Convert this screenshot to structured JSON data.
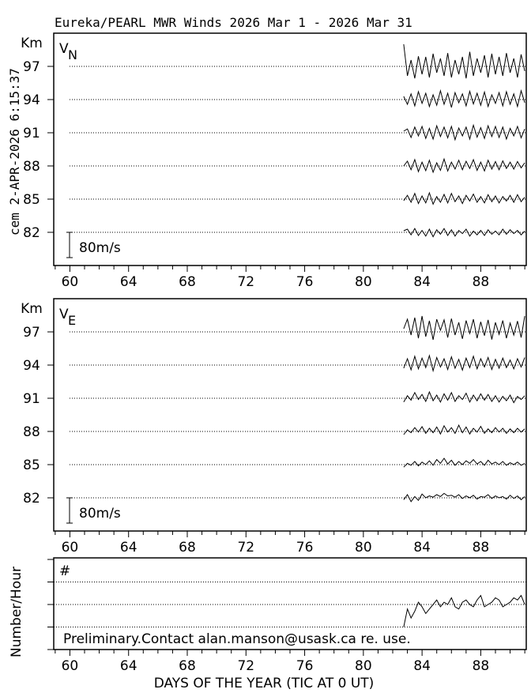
{
  "title": "Eureka/PEARL MWR Winds 2026 Mar  1 - 2026 Mar 31",
  "timestamp": "cem 2-APR-2026 6:15:37",
  "xlabel": "DAYS OF THE YEAR (TIC AT 0 UT)",
  "footer_note": "Preliminary.Contact alan.manson@usask.ca re. use.",
  "colors": {
    "line": "#000000",
    "background": "#ffffff"
  },
  "chart_data": [
    {
      "type": "line",
      "panel": "VN",
      "label_main": "V",
      "label_sub": "N",
      "ylabel": "Km",
      "heights_km": [
        "97",
        "94",
        "91",
        "88",
        "85",
        "82"
      ],
      "scale_label": "80m/s",
      "scale_value_ms": 80,
      "xlim": [
        58.9,
        91.1
      ],
      "x_tick_labels": [
        "60",
        "64",
        "68",
        "72",
        "76",
        "80",
        "84",
        "88"
      ],
      "x_start": 82.75,
      "x_step": 0.25,
      "series": [
        {
          "name": "97",
          "values": [
            70,
            -30,
            20,
            -38,
            32,
            -25,
            30,
            -35,
            40,
            -20,
            25,
            -30,
            42,
            -35,
            20,
            -25,
            30,
            -38,
            46,
            -30,
            25,
            -20,
            35,
            -35,
            40,
            -25,
            30,
            -30,
            42,
            -20,
            25,
            -35,
            38,
            -15
          ]
        },
        {
          "name": "94",
          "values": [
            10,
            -15,
            18,
            -20,
            25,
            -12,
            20,
            -22,
            15,
            -18,
            28,
            -15,
            20,
            -25,
            22,
            -10,
            18,
            -20,
            26,
            -14,
            20,
            -18,
            24,
            -22,
            15,
            -12,
            22,
            -20,
            25,
            -15,
            18,
            -22,
            28,
            -10
          ]
        },
        {
          "name": "91",
          "values": [
            5,
            12,
            -15,
            18,
            -10,
            20,
            -18,
            14,
            -20,
            22,
            -12,
            18,
            -16,
            20,
            -22,
            15,
            -10,
            18,
            -20,
            24,
            -14,
            16,
            -18,
            22,
            -12,
            20,
            -15,
            18,
            -20,
            14,
            -10,
            20,
            -16,
            12
          ]
        },
        {
          "name": "88",
          "values": [
            0,
            15,
            -12,
            20,
            -18,
            12,
            -15,
            18,
            -20,
            10,
            -14,
            22,
            -16,
            12,
            -10,
            18,
            -12,
            15,
            -8,
            20,
            -14,
            12,
            -16,
            18,
            -10,
            14,
            -12,
            16,
            -8,
            12,
            -10,
            14,
            -6,
            10
          ]
        },
        {
          "name": "85",
          "values": [
            -5,
            12,
            -10,
            18,
            -14,
            10,
            -12,
            20,
            -16,
            8,
            -10,
            15,
            -12,
            18,
            -8,
            10,
            -14,
            12,
            -6,
            16,
            -10,
            8,
            -12,
            14,
            -8,
            10,
            -12,
            8,
            -6,
            12,
            -10,
            14,
            -8,
            6
          ]
        },
        {
          "name": "82",
          "values": [
            5,
            10,
            -8,
            12,
            -10,
            6,
            -12,
            10,
            -14,
            8,
            -6,
            12,
            -10,
            8,
            -12,
            6,
            -4,
            10,
            -12,
            4,
            -8,
            6,
            -10,
            8,
            -6,
            4,
            -8,
            10,
            -6,
            8,
            -4,
            6,
            -8,
            4
          ]
        }
      ]
    },
    {
      "type": "line",
      "panel": "VE",
      "label_main": "V",
      "label_sub": "E",
      "ylabel": "Km",
      "heights_km": [
        "97",
        "94",
        "91",
        "88",
        "85",
        "82"
      ],
      "scale_label": "80m/s",
      "scale_value_ms": 80,
      "xlim": [
        58.9,
        91.1
      ],
      "x_tick_labels": [
        "60",
        "64",
        "68",
        "72",
        "76",
        "80",
        "84",
        "88"
      ],
      "x_start": 82.75,
      "x_step": 0.25,
      "series": [
        {
          "name": "97",
          "values": [
            10,
            40,
            -10,
            45,
            -20,
            50,
            -15,
            35,
            -25,
            40,
            5,
            38,
            -18,
            42,
            -10,
            30,
            -22,
            36,
            -5,
            40,
            -20,
            32,
            -12,
            38,
            -24,
            30,
            -8,
            36,
            -20,
            28,
            -10,
            34,
            -18,
            50
          ]
        },
        {
          "name": "94",
          "values": [
            -10,
            20,
            -15,
            28,
            -12,
            22,
            -8,
            30,
            -18,
            24,
            -6,
            20,
            -14,
            26,
            -10,
            18,
            -16,
            22,
            -8,
            28,
            -12,
            20,
            -6,
            24,
            -14,
            18,
            -10,
            22,
            -8,
            16,
            -12,
            20,
            -6,
            24
          ]
        },
        {
          "name": "91",
          "values": [
            -12,
            8,
            -6,
            18,
            -4,
            12,
            -10,
            20,
            -8,
            10,
            -12,
            14,
            -6,
            18,
            -10,
            8,
            -4,
            16,
            -12,
            10,
            -8,
            14,
            -6,
            12,
            -10,
            8,
            -12,
            6,
            -8,
            10,
            -14,
            6,
            -4,
            8
          ]
        },
        {
          "name": "88",
          "values": [
            -10,
            5,
            -4,
            12,
            -2,
            15,
            -6,
            10,
            -4,
            14,
            -8,
            18,
            -2,
            12,
            -6,
            20,
            -4,
            14,
            -8,
            10,
            -2,
            16,
            -6,
            8,
            -4,
            12,
            -2,
            10,
            -6,
            8,
            -4,
            10,
            -2,
            8
          ]
        },
        {
          "name": "85",
          "values": [
            -8,
            4,
            -2,
            10,
            -4,
            8,
            0,
            12,
            -2,
            16,
            4,
            20,
            2,
            14,
            -2,
            10,
            0,
            12,
            4,
            16,
            2,
            10,
            -2,
            14,
            2,
            8,
            0,
            10,
            -2,
            6,
            0,
            8,
            -2,
            4
          ]
        },
        {
          "name": "82",
          "values": [
            -6,
            10,
            -12,
            4,
            -8,
            12,
            0,
            6,
            2,
            10,
            4,
            14,
            6,
            8,
            2,
            10,
            -2,
            6,
            0,
            8,
            -4,
            4,
            2,
            10,
            -2,
            6,
            0,
            4,
            -4,
            8,
            -2,
            6,
            -6,
            4
          ]
        }
      ]
    },
    {
      "type": "line",
      "panel": "count",
      "label_main": "#",
      "ylabel": "Number/Hour",
      "ylim": [
        0,
        40
      ],
      "grid_values": [
        10,
        20,
        30
      ],
      "xlim": [
        58.9,
        91.1
      ],
      "x_tick_labels": [
        "60",
        "64",
        "68",
        "72",
        "76",
        "80",
        "84",
        "88"
      ],
      "x_start": 82.75,
      "x_step": 0.25,
      "series": [
        {
          "name": "count",
          "values": [
            10,
            18,
            14,
            17,
            21,
            19,
            16,
            18,
            20,
            22,
            19,
            21,
            20,
            23,
            19,
            18,
            21,
            22,
            20,
            19,
            22,
            24,
            19,
            20,
            21,
            23,
            22,
            19,
            20,
            21,
            23,
            22,
            24,
            20
          ]
        }
      ]
    }
  ]
}
